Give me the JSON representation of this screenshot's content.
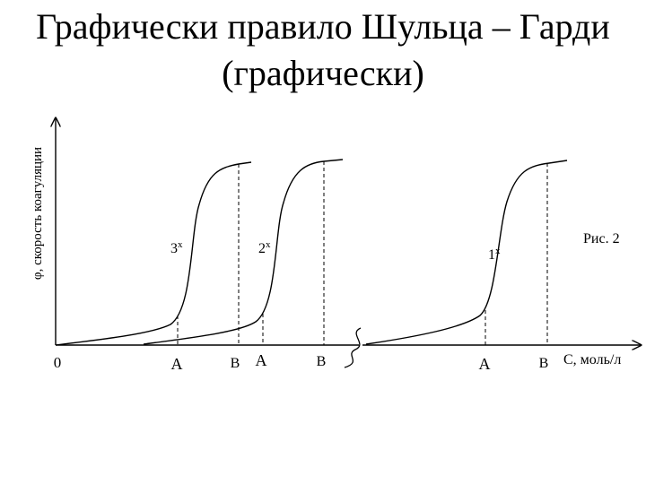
{
  "title": {
    "line1": "Графически правило Шульца – Гарди",
    "line2": "(графически)"
  },
  "figure": {
    "y_axis_label": "φ, скорость коагуляции",
    "x_axis_label": "C, моль/л",
    "origin_label": "0",
    "caption": "Рис. 2",
    "curves": [
      {
        "label": "3",
        "superscript": "x",
        "point_a": "A",
        "point_b": "B"
      },
      {
        "label": "2",
        "superscript": "x",
        "point_a": "A",
        "point_b": "B"
      },
      {
        "label": "1",
        "superscript": "x",
        "point_a": "A",
        "point_b": "B"
      }
    ]
  }
}
